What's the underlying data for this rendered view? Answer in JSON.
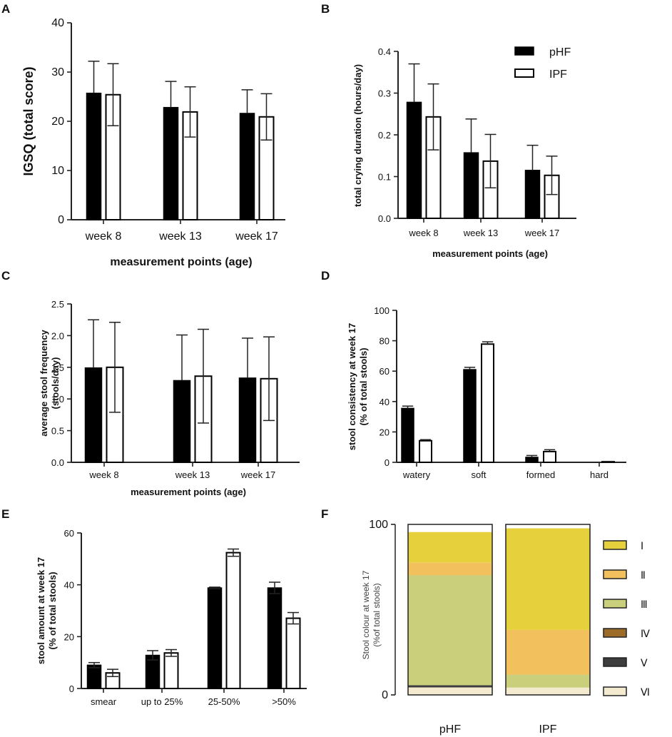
{
  "legend": {
    "series": [
      {
        "name": "pHF",
        "fill": "#000000"
      },
      {
        "name": "IPF",
        "fill": "#ffffff"
      }
    ]
  },
  "chart_data": [
    {
      "panel": "A",
      "type": "bar",
      "title": "",
      "xlabel": "measurement points (age)",
      "ylabel": "IGSQ  (total score)",
      "categories": [
        "week 8",
        "week 13",
        "week 17"
      ],
      "ylim": [
        0,
        40
      ],
      "yticks": [
        0,
        10,
        20,
        30,
        40
      ],
      "tick_labels": [
        "0",
        "10",
        "20",
        "30",
        "40"
      ],
      "series": [
        {
          "name": "pHF",
          "values": [
            25.7,
            22.8,
            21.6
          ],
          "errors": [
            6.5,
            5.3,
            4.8
          ],
          "error_dir": "up"
        },
        {
          "name": "IPF",
          "values": [
            25.4,
            21.9,
            20.9
          ],
          "errors": [
            6.3,
            5.1,
            4.7
          ],
          "error_dir": "both"
        }
      ]
    },
    {
      "panel": "B",
      "type": "bar",
      "title": "",
      "xlabel": "measurement points (age)",
      "ylabel": "total crying duration (hours/day)",
      "categories": [
        "week 8",
        "week 13",
        "week 17"
      ],
      "ylim": [
        0,
        0.4
      ],
      "yticks": [
        0,
        0.1,
        0.2,
        0.3,
        0.4
      ],
      "tick_labels": [
        "0.0",
        "0.1",
        "0.2",
        "0.3",
        "0.4"
      ],
      "series": [
        {
          "name": "pHF",
          "values": [
            0.278,
            0.157,
            0.115
          ],
          "errors": [
            0.092,
            0.081,
            0.06
          ],
          "error_dir": "up"
        },
        {
          "name": "IPF",
          "values": [
            0.243,
            0.137,
            0.103
          ],
          "errors": [
            0.079,
            0.064,
            0.046
          ],
          "error_dir": "both"
        }
      ]
    },
    {
      "panel": "C",
      "type": "bar",
      "title": "",
      "xlabel": "measurement points (age)",
      "ylabel": "average stool frequency (stools/day)",
      "ylabel_lines": [
        "average stool frequency",
        "(stools/day)"
      ],
      "categories": [
        "week 8",
        "week 13",
        "week 17"
      ],
      "ylim": [
        0,
        2.5
      ],
      "yticks": [
        0,
        0.5,
        1,
        1.5,
        2,
        2.5
      ],
      "tick_labels": [
        "0.0",
        "0.5",
        "1.0",
        "1.5",
        "2.0",
        "2.5"
      ],
      "series": [
        {
          "name": "pHF",
          "values": [
            1.49,
            1.29,
            1.33
          ],
          "errors": [
            0.76,
            0.72,
            0.63
          ],
          "error_dir": "up"
        },
        {
          "name": "IPF",
          "values": [
            1.5,
            1.36,
            1.32
          ],
          "errors": [
            0.71,
            0.74,
            0.66
          ],
          "error_dir": "both"
        }
      ]
    },
    {
      "panel": "D",
      "type": "bar",
      "title": "",
      "xlabel": "",
      "ylabel": "stool consistency at week 17 (% of total stools)",
      "ylabel_lines": [
        "stool consistency at week 17",
        "(% of total stools)"
      ],
      "categories": [
        "watery",
        "soft",
        "formed",
        "hard"
      ],
      "ylim": [
        0,
        100
      ],
      "yticks": [
        0,
        20,
        40,
        60,
        80,
        100
      ],
      "tick_labels": [
        "0",
        "20",
        "40",
        "60",
        "80",
        "100"
      ],
      "series": [
        {
          "name": "pHF",
          "values": [
            35.5,
            61,
            3.3,
            0
          ],
          "errors": [
            1.5,
            1.5,
            1.2,
            0
          ],
          "error_dir": "up"
        },
        {
          "name": "IPF",
          "values": [
            14.2,
            77.8,
            7.1,
            0.4
          ],
          "errors": [
            0.7,
            1.5,
            1.2,
            0.2
          ],
          "error_dir": "up"
        }
      ]
    },
    {
      "panel": "E",
      "type": "bar",
      "title": "",
      "xlabel": "",
      "ylabel": "stool amount at week 17 (% of total stools)",
      "ylabel_lines": [
        "stool amount at week 17",
        "(% of total stools)"
      ],
      "categories": [
        "smear",
        "up to 25%",
        "25-50%",
        ">50%"
      ],
      "ylim": [
        0,
        60
      ],
      "yticks": [
        0,
        20,
        40,
        60
      ],
      "tick_labels": [
        "0",
        "20",
        "40",
        "60"
      ],
      "series": [
        {
          "name": "pHF",
          "values": [
            9,
            12.8,
            38.8,
            38.8
          ],
          "errors": [
            1,
            1.8,
            0.3,
            2.2
          ],
          "error_dir": "both"
        },
        {
          "name": "IPF",
          "values": [
            6,
            13.7,
            52.4,
            27.1
          ],
          "errors": [
            1.4,
            1.3,
            1.4,
            2.2
          ],
          "error_dir": "both"
        }
      ]
    },
    {
      "panel": "F",
      "type": "bar",
      "stacked": true,
      "title": "",
      "xlabel": "",
      "ylabel": "Stool colour at week 17 (%of total stools)",
      "ylabel_lines": [
        "Stool colour at week 17",
        "(%of total stools)"
      ],
      "categories": [
        "pHF",
        "IPF"
      ],
      "ylim": [
        0,
        100
      ],
      "yticks": [
        0,
        100
      ],
      "tick_labels": [
        "0",
        "100"
      ],
      "series": [
        {
          "name": "Ⅰ",
          "color": "#e6d13c",
          "values": [
            17.8,
            59.6
          ]
        },
        {
          "name": "Ⅱ",
          "color": "#f3c05e",
          "values": [
            7.6,
            26.2
          ]
        },
        {
          "name": "Ⅲ",
          "color": "#c9cf7a",
          "values": [
            64.4,
            7.6
          ]
        },
        {
          "name": "Ⅳ",
          "color": "#9c6b28",
          "values": [
            0,
            0
          ]
        },
        {
          "name": "Ⅴ",
          "color": "#3d3d3d",
          "values": [
            1.3,
            0
          ]
        },
        {
          "name": "Ⅵ",
          "color": "#f4ead0",
          "values": [
            4.4,
            4.3
          ]
        }
      ]
    }
  ]
}
